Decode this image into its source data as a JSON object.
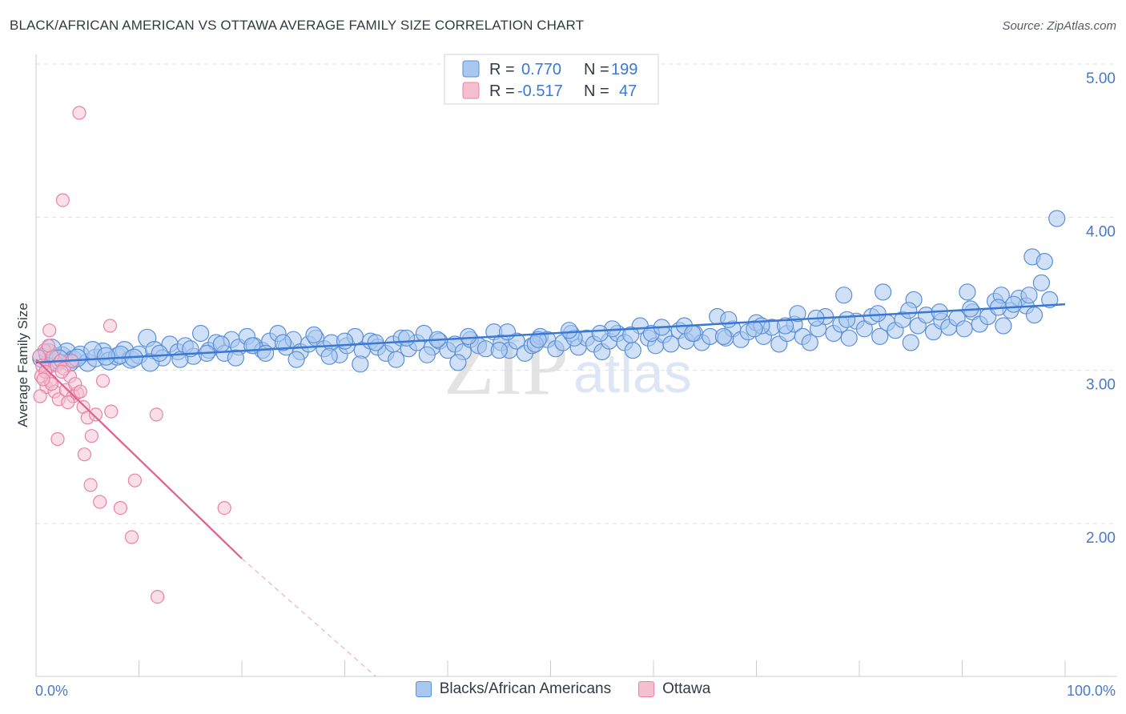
{
  "title": "BLACK/AFRICAN AMERICAN VS OTTAWA AVERAGE FAMILY SIZE CORRELATION CHART",
  "source": "Source: ZipAtlas.com",
  "watermark": {
    "zip": "ZIP",
    "atlas": "atlas"
  },
  "colors": {
    "blue_fill": "#a9c8f0",
    "blue_stroke": "#5b8fd8",
    "blue_line": "#3a78d4",
    "pink_fill": "#f6bfd0",
    "pink_stroke": "#e882a6",
    "pink_line": "#e0608e",
    "tick_text": "#4a78c8",
    "grid": "#dcdfe4"
  },
  "legend_top": [
    {
      "r_label": "R =",
      "r_value": "0.770",
      "n_label": "N =",
      "n_value": "199"
    },
    {
      "r_label": "R =",
      "r_value": "-0.517",
      "n_label": "N =",
      "n_value": "47"
    }
  ],
  "chart_data": {
    "type": "scatter",
    "title": "BLACK/AFRICAN AMERICAN VS OTTAWA AVERAGE FAMILY SIZE CORRELATION CHART",
    "xlabel": "",
    "ylabel": "Average Family Size",
    "xlim": [
      0,
      100
    ],
    "ylim": [
      1.0,
      5.1
    ],
    "x_tick_labels": [
      "0.0%",
      "100.0%"
    ],
    "y_ticks": [
      2.0,
      3.0,
      4.0,
      5.0
    ],
    "y_tick_labels": [
      "2.00",
      "3.00",
      "4.00",
      "5.00"
    ],
    "grid": "horizontal dashed",
    "legend_position": "bottom",
    "series": [
      {
        "name": "Blacks/African Americans",
        "r": 0.77,
        "n": 199,
        "trend": {
          "x": [
            0,
            100
          ],
          "y": [
            3.14,
            3.52
          ]
        },
        "points": [
          [
            0.6,
            3.17
          ],
          [
            1.2,
            3.2
          ],
          [
            1.8,
            3.15
          ],
          [
            2.5,
            3.18
          ],
          [
            3.0,
            3.21
          ],
          [
            3.6,
            3.16
          ],
          [
            4.3,
            3.19
          ],
          [
            5.0,
            3.14
          ],
          [
            5.8,
            3.17
          ],
          [
            6.5,
            3.21
          ],
          [
            7.1,
            3.15
          ],
          [
            7.9,
            3.18
          ],
          [
            8.6,
            3.22
          ],
          [
            9.2,
            3.16
          ],
          [
            10.0,
            3.19
          ],
          [
            10.8,
            3.3
          ],
          [
            11.5,
            3.22
          ],
          [
            12.3,
            3.17
          ],
          [
            13.0,
            3.26
          ],
          [
            13.8,
            3.21
          ],
          [
            14.5,
            3.25
          ],
          [
            15.3,
            3.18
          ],
          [
            16.0,
            3.33
          ],
          [
            16.8,
            3.22
          ],
          [
            17.5,
            3.27
          ],
          [
            18.3,
            3.2
          ],
          [
            19.0,
            3.29
          ],
          [
            19.7,
            3.24
          ],
          [
            20.5,
            3.31
          ],
          [
            21.2,
            3.25
          ],
          [
            22.0,
            3.22
          ],
          [
            22.7,
            3.28
          ],
          [
            23.5,
            3.33
          ],
          [
            24.3,
            3.24
          ],
          [
            25.0,
            3.29
          ],
          [
            25.7,
            3.21
          ],
          [
            26.5,
            3.26
          ],
          [
            27.2,
            3.3
          ],
          [
            28.0,
            3.23
          ],
          [
            28.7,
            3.27
          ],
          [
            29.5,
            3.19
          ],
          [
            30.2,
            3.25
          ],
          [
            31.0,
            3.31
          ],
          [
            31.7,
            3.22
          ],
          [
            32.5,
            3.28
          ],
          [
            33.2,
            3.24
          ],
          [
            34.0,
            3.2
          ],
          [
            34.7,
            3.26
          ],
          [
            35.5,
            3.3
          ],
          [
            36.2,
            3.23
          ],
          [
            37.0,
            3.27
          ],
          [
            37.7,
            3.33
          ],
          [
            38.5,
            3.24
          ],
          [
            39.2,
            3.28
          ],
          [
            40.0,
            3.22
          ],
          [
            40.7,
            3.26
          ],
          [
            41.5,
            3.21
          ],
          [
            42.2,
            3.29
          ],
          [
            43.0,
            3.25
          ],
          [
            43.7,
            3.23
          ],
          [
            44.5,
            3.34
          ],
          [
            45.2,
            3.27
          ],
          [
            46.0,
            3.22
          ],
          [
            46.7,
            3.28
          ],
          [
            47.5,
            3.2
          ],
          [
            48.2,
            3.25
          ],
          [
            49.0,
            3.31
          ],
          [
            49.7,
            3.29
          ],
          [
            50.5,
            3.23
          ],
          [
            51.2,
            3.27
          ],
          [
            52.0,
            3.33
          ],
          [
            52.7,
            3.24
          ],
          [
            53.5,
            3.3
          ],
          [
            54.2,
            3.26
          ],
          [
            55.0,
            3.21
          ],
          [
            55.7,
            3.28
          ],
          [
            56.5,
            3.33
          ],
          [
            57.2,
            3.27
          ],
          [
            58.0,
            3.22
          ],
          [
            58.7,
            3.38
          ],
          [
            59.5,
            3.3
          ],
          [
            60.2,
            3.25
          ],
          [
            61.0,
            3.32
          ],
          [
            61.7,
            3.26
          ],
          [
            62.5,
            3.35
          ],
          [
            63.2,
            3.28
          ],
          [
            64.0,
            3.33
          ],
          [
            64.7,
            3.27
          ],
          [
            65.5,
            3.31
          ],
          [
            66.2,
            3.44
          ],
          [
            67.0,
            3.3
          ],
          [
            67.7,
            3.36
          ],
          [
            68.5,
            3.29
          ],
          [
            69.2,
            3.34
          ],
          [
            70.0,
            3.4
          ],
          [
            70.7,
            3.31
          ],
          [
            71.5,
            3.37
          ],
          [
            72.2,
            3.26
          ],
          [
            73.0,
            3.33
          ],
          [
            73.7,
            3.39
          ],
          [
            74.5,
            3.31
          ],
          [
            75.2,
            3.27
          ],
          [
            76.0,
            3.36
          ],
          [
            76.7,
            3.44
          ],
          [
            77.5,
            3.33
          ],
          [
            78.2,
            3.39
          ],
          [
            79.0,
            3.3
          ],
          [
            79.7,
            3.41
          ],
          [
            80.5,
            3.36
          ],
          [
            81.2,
            3.44
          ],
          [
            82.0,
            3.31
          ],
          [
            82.7,
            3.4
          ],
          [
            83.5,
            3.35
          ],
          [
            84.2,
            3.42
          ],
          [
            85.0,
            3.27
          ],
          [
            85.7,
            3.38
          ],
          [
            86.5,
            3.45
          ],
          [
            87.2,
            3.34
          ],
          [
            88.0,
            3.41
          ],
          [
            88.7,
            3.37
          ],
          [
            89.5,
            3.43
          ],
          [
            90.2,
            3.36
          ],
          [
            91.0,
            3.47
          ],
          [
            91.7,
            3.39
          ],
          [
            92.5,
            3.44
          ],
          [
            93.2,
            3.54
          ],
          [
            94.0,
            3.38
          ],
          [
            94.7,
            3.48
          ],
          [
            95.5,
            3.56
          ],
          [
            96.2,
            3.51
          ],
          [
            97.0,
            3.45
          ],
          [
            97.7,
            3.66
          ],
          [
            98.5,
            3.55
          ],
          [
            99.2,
            4.08
          ],
          [
            96.8,
            3.83
          ],
          [
            98.0,
            3.8
          ],
          [
            93.8,
            3.58
          ],
          [
            90.5,
            3.6
          ],
          [
            85.3,
            3.55
          ],
          [
            82.3,
            3.6
          ],
          [
            78.5,
            3.58
          ],
          [
            74.0,
            3.46
          ],
          [
            70.5,
            3.38
          ],
          [
            67.3,
            3.42
          ],
          [
            63.0,
            3.38
          ],
          [
            59.8,
            3.33
          ],
          [
            56.0,
            3.36
          ],
          [
            52.3,
            3.3
          ],
          [
            48.5,
            3.26
          ],
          [
            45.0,
            3.22
          ],
          [
            41.0,
            3.14
          ],
          [
            38.0,
            3.19
          ],
          [
            35.0,
            3.16
          ],
          [
            31.5,
            3.13
          ],
          [
            28.5,
            3.18
          ],
          [
            25.3,
            3.16
          ],
          [
            22.3,
            3.2
          ],
          [
            19.4,
            3.17
          ],
          [
            16.6,
            3.2
          ],
          [
            14.0,
            3.16
          ],
          [
            11.1,
            3.14
          ],
          [
            8.2,
            3.19
          ],
          [
            5.5,
            3.22
          ],
          [
            3.3,
            3.14
          ],
          [
            1.5,
            3.23
          ],
          [
            2.2,
            3.16
          ],
          [
            4.0,
            3.17
          ],
          [
            6.8,
            3.18
          ],
          [
            9.5,
            3.17
          ],
          [
            12.0,
            3.2
          ],
          [
            15.0,
            3.23
          ],
          [
            18.0,
            3.26
          ],
          [
            21.0,
            3.25
          ],
          [
            24.0,
            3.27
          ],
          [
            27.0,
            3.32
          ],
          [
            30.0,
            3.28
          ],
          [
            33.0,
            3.27
          ],
          [
            36.0,
            3.3
          ],
          [
            39.0,
            3.29
          ],
          [
            42.0,
            3.31
          ],
          [
            45.8,
            3.34
          ],
          [
            48.8,
            3.29
          ],
          [
            51.8,
            3.35
          ],
          [
            54.8,
            3.33
          ],
          [
            57.8,
            3.32
          ],
          [
            60.8,
            3.37
          ],
          [
            63.8,
            3.33
          ],
          [
            66.8,
            3.31
          ],
          [
            69.8,
            3.36
          ],
          [
            72.8,
            3.38
          ],
          [
            75.8,
            3.43
          ],
          [
            78.8,
            3.42
          ],
          [
            81.8,
            3.46
          ],
          [
            84.8,
            3.48
          ],
          [
            87.8,
            3.47
          ],
          [
            90.8,
            3.49
          ],
          [
            93.5,
            3.5
          ],
          [
            95.0,
            3.52
          ],
          [
            96.5,
            3.58
          ]
        ]
      },
      {
        "name": "Ottawa",
        "r": -0.517,
        "n": 47,
        "trend": {
          "x": [
            0,
            20
          ],
          "y": [
            3.16,
            1.86
          ],
          "dashed_extension_to": [
            33,
            1.0
          ]
        },
        "points": [
          [
            4.2,
            4.77
          ],
          [
            2.6,
            4.2
          ],
          [
            1.3,
            3.35
          ],
          [
            7.2,
            3.38
          ],
          [
            0.8,
            3.22
          ],
          [
            1.1,
            3.1
          ],
          [
            1.6,
            3.18
          ],
          [
            2.0,
            3.12
          ],
          [
            2.4,
            3.15
          ],
          [
            0.5,
            3.05
          ],
          [
            1.0,
            2.98
          ],
          [
            1.4,
            3.02
          ],
          [
            1.8,
            2.95
          ],
          [
            2.2,
            2.9
          ],
          [
            2.9,
            2.96
          ],
          [
            3.3,
            3.05
          ],
          [
            3.6,
            2.92
          ],
          [
            4.0,
            2.94
          ],
          [
            4.6,
            2.85
          ],
          [
            5.0,
            2.78
          ],
          [
            5.4,
            2.66
          ],
          [
            5.8,
            2.8
          ],
          [
            6.5,
            3.02
          ],
          [
            7.3,
            2.82
          ],
          [
            2.1,
            2.64
          ],
          [
            4.7,
            2.54
          ],
          [
            5.3,
            2.34
          ],
          [
            6.2,
            2.23
          ],
          [
            8.2,
            2.19
          ],
          [
            9.6,
            2.37
          ],
          [
            11.7,
            2.8
          ],
          [
            18.3,
            2.19
          ],
          [
            9.3,
            2.0
          ],
          [
            11.8,
            1.61
          ],
          [
            0.3,
            3.18
          ],
          [
            0.6,
            3.12
          ],
          [
            0.9,
            3.08
          ],
          [
            1.5,
            3.0
          ],
          [
            2.7,
            3.1
          ],
          [
            3.1,
            2.88
          ],
          [
            3.8,
            3.0
          ],
          [
            0.4,
            2.92
          ],
          [
            1.2,
            3.25
          ],
          [
            2.5,
            3.08
          ],
          [
            3.5,
            3.15
          ],
          [
            4.3,
            2.95
          ],
          [
            0.7,
            3.03
          ]
        ]
      }
    ]
  },
  "bottom_legend": [
    {
      "label": "Blacks/African Americans"
    },
    {
      "label": "Ottawa"
    }
  ]
}
